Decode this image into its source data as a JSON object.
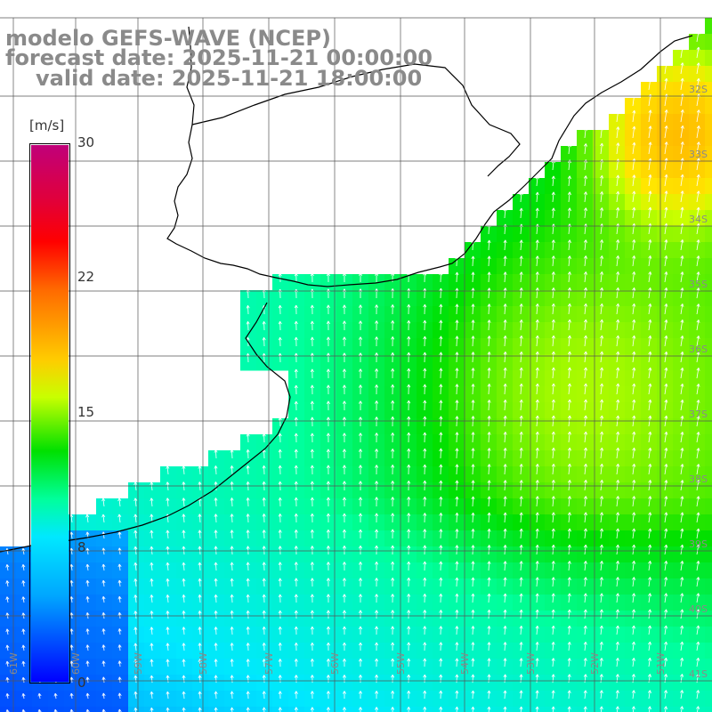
{
  "title": {
    "line1": "modelo GEFS-WAVE (NCEP)",
    "line2": "forecast date: 2025-11-21 00:00:00",
    "line3": "valid date: 2025-11-21 18:00:00"
  },
  "colorbar": {
    "unit": "[m/s]",
    "ticks": [
      "30",
      "22",
      "15",
      "8",
      "0"
    ],
    "colors": [
      "#c0007a",
      "#ff0000",
      "#ff6a00",
      "#ffcc00",
      "#00e000",
      "#00ff9c",
      "#00e8ff",
      "#00a6ff",
      "#0000ff"
    ]
  },
  "lat_labels": [
    "32S",
    "33S",
    "34S",
    "35S",
    "36S",
    "37S",
    "38S",
    "39S",
    "40S",
    "41S"
  ],
  "lon_labels": [
    "61W",
    "60W",
    "59W",
    "58W",
    "57W",
    "56W",
    "55W",
    "54W",
    "53W",
    "52W",
    "51W"
  ],
  "colors": {
    "land": "#ffffff",
    "coast": "#000000",
    "grid": "#555555",
    "arrows": "#ffffff"
  }
}
